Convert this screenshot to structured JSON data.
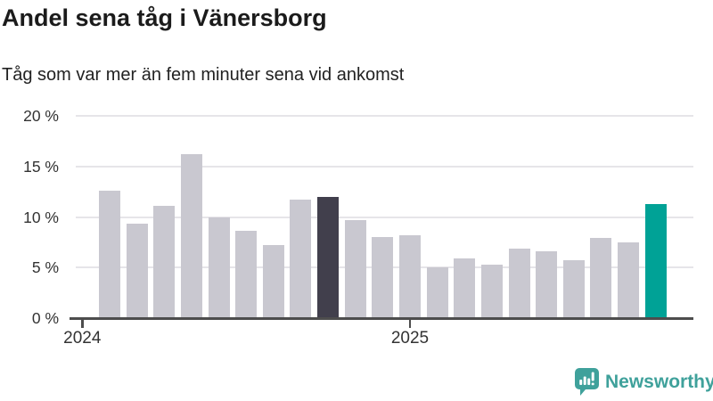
{
  "title": "Andel sena tåg i Vänersborg",
  "subtitle": "Tåg som var mer än fem minuter sena vid ankomst",
  "chart_data": {
    "type": "bar",
    "x": [
      "2024-02",
      "2024-03",
      "2024-04",
      "2024-05",
      "2024-06",
      "2024-07",
      "2024-08",
      "2024-09",
      "2024-10",
      "2024-11",
      "2024-12",
      "2025-01",
      "2025-02",
      "2025-03",
      "2025-04",
      "2025-05",
      "2025-06",
      "2025-07",
      "2025-08",
      "2025-09",
      "2025-10"
    ],
    "values": [
      12.6,
      9.3,
      11.1,
      16.2,
      10.0,
      8.6,
      7.2,
      11.7,
      12.0,
      9.7,
      8.0,
      8.2,
      5.0,
      5.9,
      5.3,
      6.9,
      6.6,
      5.7,
      7.9,
      7.5,
      11.3
    ],
    "unit": "%",
    "ylim": [
      0,
      20
    ],
    "yticks": [
      0,
      5,
      10,
      15,
      20
    ],
    "ytick_labels": [
      "0 %",
      "5 %",
      "10 %",
      "15 %",
      "20 %"
    ],
    "xtick_labels": [
      "2024",
      "2025"
    ],
    "grid": "horizontal",
    "legend": "none",
    "highlight_dark_index": 8,
    "highlight_teal_index": 20,
    "colors": {
      "bar_default": "#c9c8d0",
      "bar_highlight_dark": "#413f4c",
      "bar_highlight_teal": "#00a296",
      "gridline": "#e6e5e9",
      "axis": "#4d4d4d",
      "label": "#333333"
    }
  },
  "branding": {
    "logo_text": "Newsworthy",
    "logo_color": "#3fa19b",
    "logo_icon": "bar-chart-speech-bubble"
  }
}
